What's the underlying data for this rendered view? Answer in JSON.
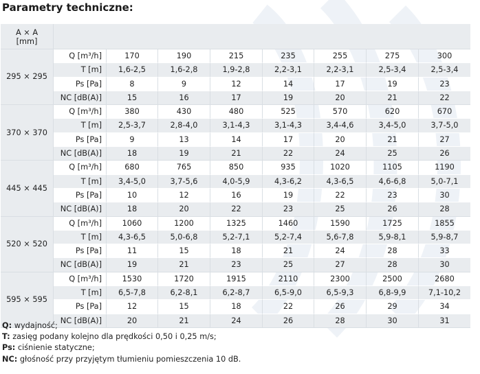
{
  "title": "Parametry techniczne:",
  "table": {
    "header_size": "A × A\n[mm]",
    "groups": [
      {
        "size": "295 × 295",
        "rows": [
          {
            "param": "Q [m³/h]",
            "values": [
              "170",
              "190",
              "215",
              "235",
              "255",
              "275",
              "300"
            ]
          },
          {
            "param": "T [m]",
            "values": [
              "1,6-2,5",
              "1,6-2,8",
              "1,9-2,8",
              "2,2-3,1",
              "2,2-3,1",
              "2,5-3,4",
              "2,5-3,4"
            ]
          },
          {
            "param": "Ps [Pa]",
            "values": [
              "8",
              "9",
              "12",
              "14",
              "17",
              "19",
              "23"
            ]
          },
          {
            "param": "NC [dB(A)]",
            "values": [
              "15",
              "16",
              "17",
              "19",
              "20",
              "21",
              "22"
            ]
          }
        ]
      },
      {
        "size": "370 × 370",
        "rows": [
          {
            "param": "Q [m³/h]",
            "values": [
              "380",
              "430",
              "480",
              "525",
              "570",
              "620",
              "670"
            ]
          },
          {
            "param": "T [m]",
            "values": [
              "2,5-3,7",
              "2,8-4,0",
              "3,1-4,3",
              "3,1-4,3",
              "3,4-4,6",
              "3,4-5,0",
              "3,7-5,0"
            ]
          },
          {
            "param": "Ps [Pa]",
            "values": [
              "9",
              "13",
              "14",
              "17",
              "20",
              "21",
              "27"
            ]
          },
          {
            "param": "NC [dB(A)]",
            "values": [
              "18",
              "19",
              "21",
              "22",
              "24",
              "25",
              "26"
            ]
          }
        ]
      },
      {
        "size": "445 × 445",
        "rows": [
          {
            "param": "Q [m³/h]",
            "values": [
              "680",
              "765",
              "850",
              "935",
              "1020",
              "1105",
              "1190"
            ]
          },
          {
            "param": "T [m]",
            "values": [
              "3,4-5,0",
              "3,7-5,6",
              "4,0-5,9",
              "4,3-6,2",
              "4,3-6,5",
              "4,6-6,8",
              "5,0-7,1"
            ]
          },
          {
            "param": "Ps [Pa]",
            "values": [
              "10",
              "12",
              "16",
              "19",
              "22",
              "23",
              "30"
            ]
          },
          {
            "param": "NC [dB(A)]",
            "values": [
              "18",
              "20",
              "22",
              "23",
              "25",
              "26",
              "28"
            ]
          }
        ]
      },
      {
        "size": "520 × 520",
        "rows": [
          {
            "param": "Q [m³/h]",
            "values": [
              "1060",
              "1200",
              "1325",
              "1460",
              "1590",
              "1725",
              "1855"
            ]
          },
          {
            "param": "T [m]",
            "values": [
              "4,3-6,5",
              "5,0-6,8",
              "5,2-7,1",
              "5,2-7,4",
              "5,6-7,8",
              "5,9-8,1",
              "5,9-8,7"
            ]
          },
          {
            "param": "Ps [Pa]",
            "values": [
              "11",
              "15",
              "18",
              "21",
              "24",
              "28",
              "33"
            ]
          },
          {
            "param": "NC [dB(A)]",
            "values": [
              "19",
              "21",
              "23",
              "25",
              "27",
              "28",
              "30"
            ]
          }
        ]
      },
      {
        "size": "595 × 595",
        "rows": [
          {
            "param": "Q [m³/h]",
            "values": [
              "1530",
              "1720",
              "1915",
              "2110",
              "2300",
              "2500",
              "2680"
            ]
          },
          {
            "param": "T [m]",
            "values": [
              "6,5-7,8",
              "6,2-8,1",
              "6,2-8,7",
              "6,5-9,0",
              "6,5-9,3",
              "6,8-9,9",
              "7,1-10,2"
            ]
          },
          {
            "param": "Ps [Pa]",
            "values": [
              "12",
              "15",
              "18",
              "22",
              "26",
              "29",
              "34"
            ]
          },
          {
            "param": "NC [dB(A)]",
            "values": [
              "20",
              "21",
              "24",
              "26",
              "28",
              "30",
              "31"
            ]
          }
        ]
      }
    ]
  },
  "legend": [
    {
      "key": "Q:",
      "text": " wydajność;"
    },
    {
      "key": "T:",
      "text": " zasięg podany kolejno dla prędkości 0,50 i 0,25 m/s;"
    },
    {
      "key": "Ps:",
      "text": " ciśnienie statyczne;"
    },
    {
      "key": "NC:",
      "text": " głośność przy przyjętym tłumieniu pomieszczenia 10 dB."
    }
  ],
  "colors": {
    "shade": "#e9ecef",
    "watermark": "#eef2f7"
  }
}
